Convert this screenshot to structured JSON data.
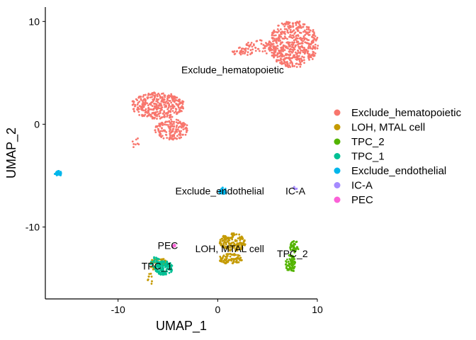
{
  "chart_data": {
    "type": "scatter",
    "xlabel": "UMAP_1",
    "ylabel": "UMAP_2",
    "xlim": [
      -17.3,
      10
    ],
    "ylim": [
      -17,
      11.4
    ],
    "x_ticks": [
      -10,
      0,
      10
    ],
    "y_ticks": [
      -10,
      0,
      10
    ],
    "x_tick_labels": [
      "-10",
      "0",
      "10"
    ],
    "y_tick_labels": [
      "-10",
      "0",
      "10"
    ],
    "grid": false,
    "legend_position": "right",
    "series": [
      {
        "name": "Exclude_hematopoietic",
        "color": "#F8766D",
        "clusters": [
          {
            "cx": 7.6,
            "cy": 7.8,
            "rx": 2.5,
            "ry": 2.3,
            "n": 520
          },
          {
            "cx": 4.3,
            "cy": 7.5,
            "rx": 1.8,
            "ry": 0.7,
            "n": 60
          },
          {
            "cx": 2.5,
            "cy": 7.1,
            "rx": 1.2,
            "ry": 0.4,
            "n": 35
          },
          {
            "cx": -6.0,
            "cy": 1.8,
            "rx": 2.7,
            "ry": 1.3,
            "n": 360
          },
          {
            "cx": -4.6,
            "cy": -0.5,
            "rx": 1.7,
            "ry": 1.0,
            "n": 160
          },
          {
            "cx": -8.3,
            "cy": -1.8,
            "rx": 0.4,
            "ry": 0.6,
            "n": 8
          }
        ]
      },
      {
        "name": "LOH, MTAL cell",
        "color": "#C49A00",
        "clusters": [
          {
            "cx": 1.5,
            "cy": -11.5,
            "rx": 1.3,
            "ry": 0.9,
            "n": 170
          },
          {
            "cx": 1.3,
            "cy": -13.1,
            "rx": 1.2,
            "ry": 0.5,
            "n": 90
          },
          {
            "cx": -5.9,
            "cy": -13.6,
            "rx": 0.9,
            "ry": 0.7,
            "n": 45
          },
          {
            "cx": -6.8,
            "cy": -15.1,
            "rx": 0.25,
            "ry": 0.6,
            "n": 10
          }
        ]
      },
      {
        "name": "TPC_2",
        "color": "#53B400",
        "clusters": [
          {
            "cx": 7.7,
            "cy": -11.9,
            "rx": 0.45,
            "ry": 0.6,
            "n": 45
          },
          {
            "cx": 7.3,
            "cy": -13.6,
            "rx": 0.5,
            "ry": 0.9,
            "n": 70
          }
        ]
      },
      {
        "name": "TPC_1",
        "color": "#00C094",
        "clusters": [
          {
            "cx": -5.4,
            "cy": -14.0,
            "rx": 0.9,
            "ry": 0.7,
            "n": 130
          },
          {
            "cx": -6.3,
            "cy": -13.4,
            "rx": 0.5,
            "ry": 0.5,
            "n": 30
          }
        ]
      },
      {
        "name": "Exclude_endothelial",
        "color": "#00B6EB",
        "clusters": [
          {
            "cx": -16.0,
            "cy": -4.8,
            "rx": 0.35,
            "ry": 0.25,
            "n": 35
          },
          {
            "cx": 0.5,
            "cy": -6.5,
            "rx": 0.4,
            "ry": 0.35,
            "n": 40
          }
        ]
      },
      {
        "name": "IC-A",
        "color": "#A58AFF",
        "clusters": [
          {
            "cx": 7.8,
            "cy": -6.2,
            "rx": 0.2,
            "ry": 0.15,
            "n": 8
          }
        ]
      },
      {
        "name": "PEC",
        "color": "#FB61D7",
        "clusters": [
          {
            "cx": -4.4,
            "cy": -11.9,
            "rx": 0.2,
            "ry": 0.2,
            "n": 8
          }
        ]
      }
    ],
    "annotations": [
      {
        "text": "Exclude_hematopoietic",
        "x": 1.5,
        "y": 5.3
      },
      {
        "text": "Exclude_endothelial",
        "x": 0.2,
        "y": -6.5
      },
      {
        "text": "IC-A",
        "x": 7.8,
        "y": -6.5
      },
      {
        "text": "PEC",
        "x": -5.0,
        "y": -11.8
      },
      {
        "text": "LOH, MTAL cell",
        "x": 1.2,
        "y": -12.1
      },
      {
        "text": "TPC_2",
        "x": 7.5,
        "y": -12.6
      },
      {
        "text": "TPC_1",
        "x": -6.1,
        "y": -13.8
      }
    ]
  }
}
